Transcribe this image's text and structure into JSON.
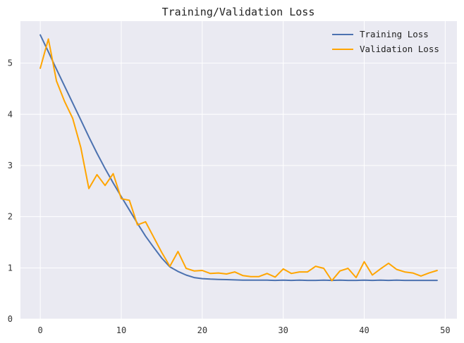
{
  "chart_data": {
    "type": "line",
    "title": "Training/Validation Loss",
    "xlabel": "",
    "ylabel": "",
    "xlim": [
      -2.45,
      51.45
    ],
    "ylim": [
      0,
      5.82
    ],
    "xticks": [
      0,
      10,
      20,
      30,
      40,
      50
    ],
    "yticks": [
      0,
      1,
      2,
      3,
      4,
      5
    ],
    "grid": true,
    "legend_position": "top-right",
    "background": "#eaeaf2",
    "x": [
      0,
      1,
      2,
      3,
      4,
      5,
      6,
      7,
      8,
      9,
      10,
      11,
      12,
      13,
      14,
      15,
      16,
      17,
      18,
      19,
      20,
      21,
      22,
      23,
      24,
      25,
      26,
      27,
      28,
      29,
      30,
      31,
      32,
      33,
      34,
      35,
      36,
      37,
      38,
      39,
      40,
      41,
      42,
      43,
      44,
      45,
      46,
      47,
      48,
      49
    ],
    "series": [
      {
        "name": "Training Loss",
        "color": "#4c72b0",
        "values": [
          5.55,
          5.22,
          4.88,
          4.55,
          4.22,
          3.89,
          3.56,
          3.24,
          2.94,
          2.66,
          2.39,
          2.13,
          1.87,
          1.62,
          1.4,
          1.19,
          1.02,
          0.93,
          0.86,
          0.81,
          0.79,
          0.78,
          0.775,
          0.77,
          0.765,
          0.76,
          0.76,
          0.76,
          0.76,
          0.755,
          0.76,
          0.755,
          0.76,
          0.755,
          0.755,
          0.76,
          0.755,
          0.76,
          0.755,
          0.755,
          0.76,
          0.755,
          0.76,
          0.755,
          0.76,
          0.755,
          0.755,
          0.755,
          0.755,
          0.755
        ]
      },
      {
        "name": "Validation Loss",
        "color": "#ffa500",
        "values": [
          4.9,
          5.47,
          4.65,
          4.25,
          3.92,
          3.35,
          2.55,
          2.82,
          2.61,
          2.84,
          2.35,
          2.32,
          1.84,
          1.9,
          1.6,
          1.3,
          1.03,
          1.32,
          0.99,
          0.94,
          0.95,
          0.89,
          0.9,
          0.88,
          0.92,
          0.85,
          0.83,
          0.83,
          0.89,
          0.82,
          0.98,
          0.89,
          0.92,
          0.92,
          1.03,
          0.99,
          0.75,
          0.94,
          0.99,
          0.81,
          1.12,
          0.86,
          0.98,
          1.09,
          0.97,
          0.92,
          0.9,
          0.84,
          0.9,
          0.95
        ]
      }
    ]
  }
}
